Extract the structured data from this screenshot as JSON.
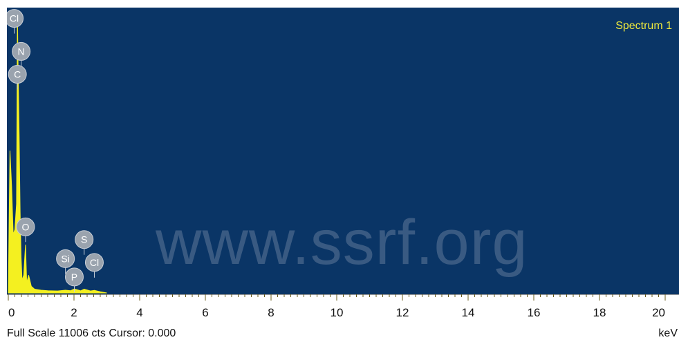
{
  "window": {
    "spectrum_label": "Spectrum 1",
    "watermark": "www.ssrf.org",
    "status_line": "Full Scale 11006 cts Cursor: 0.000",
    "x_unit": "keV"
  },
  "colors": {
    "plot_background": "#0a3566",
    "spectrum_fill": "#f4f020",
    "label_text": "#f0ea3c",
    "marker_fill": "#9aa3ae"
  },
  "chart_data": {
    "type": "area",
    "title": "Spectrum 1",
    "xlabel": "keV",
    "ylabel": "",
    "xlim": [
      0,
      20
    ],
    "ylim": [
      0,
      11006
    ],
    "x_ticks": [
      "0",
      "2",
      "4",
      "6",
      "8",
      "10",
      "12",
      "14",
      "16",
      "18",
      "20"
    ],
    "full_scale_counts": 11006,
    "cursor": 0.0,
    "series": [
      {
        "x": [
          0.0,
          0.05,
          0.1,
          0.15,
          0.2,
          0.25,
          0.277,
          0.3,
          0.33,
          0.36,
          0.39,
          0.42,
          0.47,
          0.525,
          0.56,
          0.62,
          0.7,
          0.8,
          1.0,
          1.2,
          1.5,
          1.74,
          1.9,
          2.01,
          2.2,
          2.31,
          2.5,
          2.62,
          2.8,
          3.0
        ],
        "values": [
          0,
          5600,
          4200,
          2300,
          2500,
          3500,
          11006,
          8600,
          6200,
          3200,
          1400,
          500,
          700,
          1900,
          400,
          700,
          260,
          150,
          110,
          90,
          80,
          110,
          90,
          160,
          85,
          150,
          80,
          100,
          50,
          0
        ]
      }
    ],
    "peak_labels": [
      {
        "element": "Cl",
        "energy": 0.18,
        "height": 10800
      },
      {
        "element": "N",
        "energy": 0.392,
        "height": 9500
      },
      {
        "element": "C",
        "energy": 0.277,
        "height": 8600
      },
      {
        "element": "O",
        "energy": 0.525,
        "height": 2600
      },
      {
        "element": "Si",
        "energy": 1.74,
        "height": 1350
      },
      {
        "element": "S",
        "energy": 2.31,
        "height": 2100
      },
      {
        "element": "Cl",
        "energy": 2.62,
        "height": 1200
      },
      {
        "element": "P",
        "energy": 2.01,
        "height": 630
      }
    ]
  }
}
